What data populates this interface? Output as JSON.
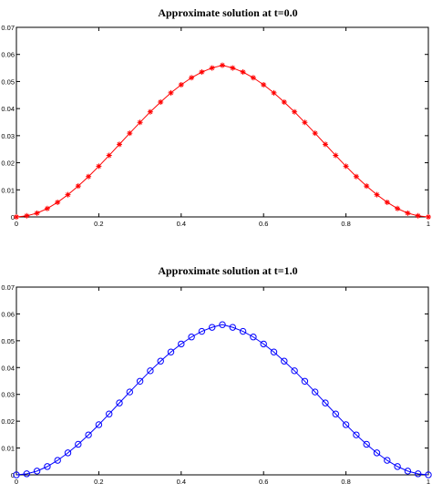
{
  "chart_data": [
    {
      "type": "line",
      "title": "Approximate solution at t=0.0",
      "xlabel": "",
      "ylabel": "",
      "xlim": [
        0,
        1
      ],
      "ylim": [
        0,
        0.07
      ],
      "xticks": [
        0,
        0.2,
        0.4,
        0.6,
        0.8,
        1
      ],
      "xtick_labels": [
        "0",
        "0.2",
        "0.4",
        "0.6",
        "0.8",
        "1"
      ],
      "yticks": [
        0,
        0.01,
        0.02,
        0.03,
        0.04,
        0.05,
        0.06,
        0.07
      ],
      "ytick_labels": [
        "0",
        "0.01",
        "0.02",
        "0.03",
        "0.04",
        "0.05",
        "0.06",
        "0.07"
      ],
      "grid": false,
      "color": "#ff0000",
      "marker": "asterisk",
      "series": [
        {
          "x": [
            0,
            0.025,
            0.05,
            0.075,
            0.1,
            0.125,
            0.15,
            0.175,
            0.2,
            0.225,
            0.25,
            0.275,
            0.3,
            0.325,
            0.35,
            0.375,
            0.4,
            0.425,
            0.45,
            0.475,
            0.5,
            0.525,
            0.55,
            0.575,
            0.6,
            0.625,
            0.65,
            0.675,
            0.7,
            0.725,
            0.75,
            0.775,
            0.8,
            0.825,
            0.85,
            0.875,
            0.9,
            0.925,
            0.95,
            0.975,
            1
          ],
          "y": [
            0,
            0.0004,
            0.0014,
            0.0031,
            0.0054,
            0.0082,
            0.0114,
            0.0149,
            0.0187,
            0.0227,
            0.0268,
            0.0309,
            0.0349,
            0.0388,
            0.0424,
            0.0458,
            0.0488,
            0.0514,
            0.0535,
            0.055,
            0.056,
            0.055,
            0.0535,
            0.0514,
            0.0488,
            0.0458,
            0.0424,
            0.0388,
            0.0349,
            0.0309,
            0.0268,
            0.0227,
            0.0187,
            0.0149,
            0.0114,
            0.0082,
            0.0054,
            0.0031,
            0.0014,
            0.0004,
            0
          ]
        }
      ]
    },
    {
      "type": "line",
      "title": "Approximate solution at t=1.0",
      "xlabel": "",
      "ylabel": "",
      "xlim": [
        0,
        1
      ],
      "ylim": [
        0,
        0.07
      ],
      "xticks": [
        0,
        0.2,
        0.4,
        0.6,
        0.8,
        1
      ],
      "xtick_labels": [
        "0",
        "0.2",
        "0.4",
        "0.6",
        "0.8",
        "1"
      ],
      "yticks": [
        0,
        0.01,
        0.02,
        0.03,
        0.04,
        0.05,
        0.06,
        0.07
      ],
      "ytick_labels": [
        "0",
        "0.01",
        "0.02",
        "0.03",
        "0.04",
        "0.05",
        "0.06",
        "0.07"
      ],
      "grid": false,
      "color": "#0000ff",
      "marker": "circle",
      "series": [
        {
          "x": [
            0,
            0.025,
            0.05,
            0.075,
            0.1,
            0.125,
            0.15,
            0.175,
            0.2,
            0.225,
            0.25,
            0.275,
            0.3,
            0.325,
            0.35,
            0.375,
            0.4,
            0.425,
            0.45,
            0.475,
            0.5,
            0.525,
            0.55,
            0.575,
            0.6,
            0.625,
            0.65,
            0.675,
            0.7,
            0.725,
            0.75,
            0.775,
            0.8,
            0.825,
            0.85,
            0.875,
            0.9,
            0.925,
            0.95,
            0.975,
            1
          ],
          "y": [
            0,
            0.0004,
            0.0014,
            0.0031,
            0.0054,
            0.0082,
            0.0114,
            0.0149,
            0.0187,
            0.0227,
            0.0268,
            0.0309,
            0.0349,
            0.0388,
            0.0424,
            0.0458,
            0.0488,
            0.0514,
            0.0535,
            0.055,
            0.056,
            0.055,
            0.0535,
            0.0514,
            0.0488,
            0.0458,
            0.0424,
            0.0388,
            0.0349,
            0.0309,
            0.0268,
            0.0227,
            0.0187,
            0.0149,
            0.0114,
            0.0082,
            0.0054,
            0.0031,
            0.0014,
            0.0004,
            0
          ]
        }
      ]
    }
  ]
}
